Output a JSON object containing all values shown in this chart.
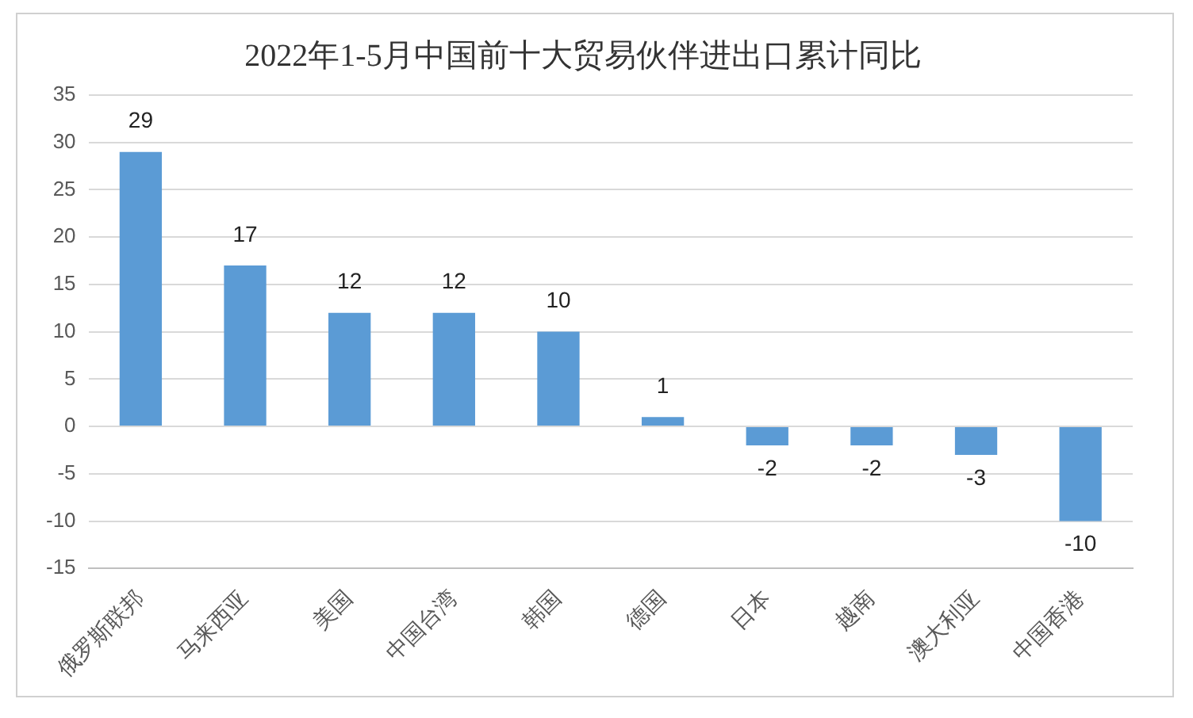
{
  "chart_data": {
    "type": "bar",
    "title": "2022年1-5月中国前十大贸易伙伴进出口累计同比",
    "categories": [
      "俄罗斯联邦",
      "马来西亚",
      "美国",
      "中国台湾",
      "韩国",
      "德国",
      "日本",
      "越南",
      "澳大利亚",
      "中国香港"
    ],
    "values": [
      29,
      17,
      12,
      12,
      10,
      1,
      -2,
      -2,
      -3,
      -10
    ],
    "color": "#5b9bd5",
    "ylim": [
      -15,
      35
    ],
    "yticks": [
      -15,
      -10,
      -5,
      0,
      5,
      10,
      15,
      20,
      25,
      30,
      35
    ],
    "grid": "y",
    "data_labels": true
  }
}
